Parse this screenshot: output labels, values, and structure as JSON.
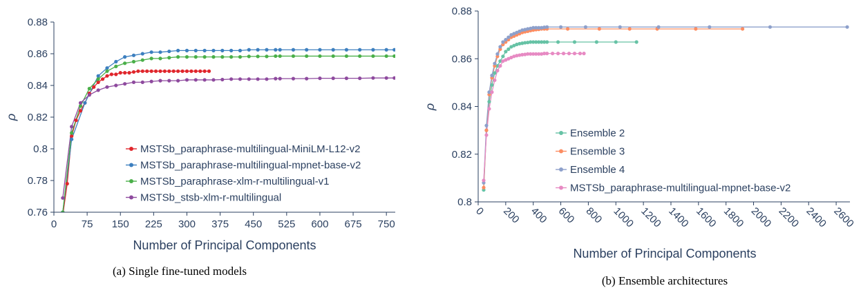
{
  "chart_data": [
    {
      "type": "line",
      "caption": "(a) Single fine-tuned models",
      "xlabel": "Number of Principal Components",
      "ylabel": "ρ",
      "xlim": [
        0,
        770
      ],
      "ylim": [
        0.76,
        0.88
      ],
      "xticks": [
        0,
        75,
        150,
        225,
        300,
        375,
        450,
        525,
        600,
        675,
        750
      ],
      "yticks": [
        0.76,
        0.78,
        0.8,
        0.82,
        0.84,
        0.86,
        0.88
      ],
      "ytick_labels": [
        "0.76",
        "0.78",
        "0.8",
        "0.82",
        "0.84",
        "0.86",
        "0.88"
      ],
      "grid": false,
      "legend_position": "bottom-right",
      "series": [
        {
          "name": "MSTSb_paraphrase-multilingual-MiniLM-L12-v2",
          "color": "#e0262c",
          "x": [
            20,
            30,
            40,
            50,
            60,
            70,
            80,
            90,
            100,
            110,
            120,
            130,
            140,
            150,
            160,
            170,
            180,
            190,
            200,
            210,
            220,
            230,
            240,
            250,
            260,
            270,
            280,
            290,
            300,
            310,
            320,
            330,
            340,
            350
          ],
          "y": [
            0.758,
            0.778,
            0.808,
            0.818,
            0.824,
            0.829,
            0.835,
            0.839,
            0.842,
            0.844,
            0.846,
            0.847,
            0.847,
            0.848,
            0.848,
            0.848,
            0.8485,
            0.849,
            0.849,
            0.849,
            0.849,
            0.849,
            0.849,
            0.849,
            0.849,
            0.849,
            0.849,
            0.849,
            0.849,
            0.849,
            0.849,
            0.849,
            0.849,
            0.849
          ]
        },
        {
          "name": "MSTSb_paraphrase-multilingual-mpnet-base-v2",
          "color": "#3c7fbf",
          "x": [
            20,
            40,
            70,
            100,
            120,
            140,
            160,
            180,
            200,
            220,
            240,
            260,
            280,
            300,
            320,
            340,
            360,
            380,
            400,
            420,
            440,
            460,
            480,
            500,
            510,
            540,
            570,
            600,
            630,
            660,
            690,
            720,
            750,
            768
          ],
          "y": [
            0.76,
            0.806,
            0.829,
            0.846,
            0.851,
            0.855,
            0.858,
            0.859,
            0.86,
            0.861,
            0.861,
            0.8615,
            0.862,
            0.862,
            0.862,
            0.862,
            0.862,
            0.862,
            0.862,
            0.862,
            0.8625,
            0.8625,
            0.8625,
            0.8625,
            0.8625,
            0.8625,
            0.8625,
            0.8625,
            0.8625,
            0.8625,
            0.8625,
            0.8625,
            0.8625,
            0.8625
          ]
        },
        {
          "name": "MSTSb_paraphrase-xlm-r-multilingual-v1",
          "color": "#4aaf49",
          "x": [
            20,
            40,
            60,
            80,
            100,
            120,
            140,
            160,
            180,
            200,
            220,
            240,
            260,
            280,
            300,
            320,
            340,
            360,
            380,
            400,
            420,
            440,
            460,
            480,
            500,
            510,
            540,
            570,
            600,
            630,
            660,
            690,
            720,
            750,
            768
          ],
          "y": [
            0.76,
            0.81,
            0.827,
            0.838,
            0.844,
            0.849,
            0.852,
            0.854,
            0.855,
            0.856,
            0.857,
            0.857,
            0.8575,
            0.858,
            0.858,
            0.858,
            0.858,
            0.858,
            0.858,
            0.858,
            0.858,
            0.8583,
            0.8583,
            0.8583,
            0.8585,
            0.8585,
            0.8585,
            0.8585,
            0.8585,
            0.8585,
            0.8585,
            0.8585,
            0.8585,
            0.8585,
            0.8585
          ]
        },
        {
          "name": "MSTSb_stsb-xlm-r-multilingual",
          "color": "#8e4a9e",
          "x": [
            20,
            40,
            60,
            80,
            100,
            120,
            140,
            160,
            180,
            200,
            220,
            240,
            260,
            280,
            300,
            320,
            340,
            360,
            380,
            400,
            420,
            440,
            460,
            480,
            500,
            510,
            540,
            570,
            600,
            630,
            660,
            690,
            720,
            750,
            768
          ],
          "y": [
            0.769,
            0.814,
            0.829,
            0.834,
            0.837,
            0.839,
            0.84,
            0.841,
            0.842,
            0.842,
            0.8425,
            0.843,
            0.843,
            0.843,
            0.8435,
            0.8435,
            0.8435,
            0.8435,
            0.8437,
            0.844,
            0.844,
            0.844,
            0.844,
            0.844,
            0.8443,
            0.8443,
            0.8443,
            0.8443,
            0.8445,
            0.8445,
            0.8445,
            0.8445,
            0.8447,
            0.8447,
            0.8447
          ]
        }
      ]
    },
    {
      "type": "line",
      "caption": "(b) Ensemble architectures",
      "xlabel": "Number of Principal Components",
      "ylabel": "ρ",
      "xlim": [
        0,
        2700
      ],
      "ylim": [
        0.8,
        0.88
      ],
      "xticks": [
        0,
        200,
        400,
        600,
        800,
        1000,
        1200,
        1400,
        1600,
        1800,
        2000,
        2200,
        2400,
        2600
      ],
      "yticks": [
        0.8,
        0.82,
        0.84,
        0.86,
        0.88
      ],
      "ytick_labels": [
        "0.8",
        "0.82",
        "0.84",
        "0.86",
        "0.88"
      ],
      "grid": false,
      "legend_position": "center",
      "series": [
        {
          "name": "Ensemble 2",
          "color": "#66c2a5",
          "x": [
            40,
            60,
            80,
            100,
            120,
            140,
            160,
            180,
            200,
            220,
            240,
            260,
            280,
            300,
            320,
            340,
            360,
            380,
            400,
            420,
            440,
            460,
            480,
            500,
            580,
            700,
            860,
            1000,
            1150
          ],
          "y": [
            0.805,
            0.83,
            0.842,
            0.849,
            0.854,
            0.857,
            0.859,
            0.861,
            0.863,
            0.864,
            0.865,
            0.8655,
            0.866,
            0.8663,
            0.8665,
            0.8667,
            0.8668,
            0.867,
            0.867,
            0.867,
            0.867,
            0.867,
            0.867,
            0.867,
            0.867,
            0.867,
            0.867,
            0.867,
            0.867
          ]
        },
        {
          "name": "Ensemble 3",
          "color": "#fc8d62",
          "x": [
            40,
            60,
            80,
            100,
            120,
            140,
            160,
            180,
            200,
            220,
            240,
            260,
            280,
            300,
            320,
            340,
            360,
            380,
            400,
            420,
            440,
            460,
            480,
            500,
            650,
            880,
            1100,
            1300,
            1580,
            1920
          ],
          "y": [
            0.806,
            0.83,
            0.845,
            0.852,
            0.857,
            0.861,
            0.864,
            0.866,
            0.867,
            0.868,
            0.869,
            0.8695,
            0.87,
            0.8705,
            0.871,
            0.8713,
            0.8715,
            0.8718,
            0.872,
            0.8722,
            0.8723,
            0.8725,
            0.8725,
            0.8725,
            0.8725,
            0.8725,
            0.8725,
            0.8725,
            0.8725,
            0.8725
          ]
        },
        {
          "name": "Ensemble 4",
          "color": "#8da0cb",
          "x": [
            40,
            60,
            80,
            100,
            120,
            140,
            160,
            180,
            200,
            220,
            240,
            260,
            280,
            300,
            320,
            340,
            360,
            380,
            400,
            420,
            440,
            460,
            480,
            500,
            600,
            780,
            1030,
            1310,
            1680,
            2120,
            2680
          ],
          "y": [
            0.808,
            0.832,
            0.846,
            0.853,
            0.858,
            0.862,
            0.865,
            0.867,
            0.868,
            0.869,
            0.87,
            0.8705,
            0.871,
            0.8715,
            0.872,
            0.8722,
            0.8725,
            0.8727,
            0.873,
            0.873,
            0.873,
            0.873,
            0.8732,
            0.8733,
            0.8733,
            0.8733,
            0.8733,
            0.8733,
            0.8733,
            0.8733,
            0.8733
          ]
        },
        {
          "name": "MSTSb_paraphrase-multilingual-mpnet-base-v2",
          "color": "#e78ac3",
          "x": [
            40,
            60,
            80,
            100,
            120,
            140,
            160,
            180,
            200,
            220,
            240,
            260,
            280,
            300,
            320,
            340,
            360,
            380,
            400,
            420,
            440,
            460,
            480,
            500,
            540,
            580,
            620,
            660,
            700,
            740,
            768
          ],
          "y": [
            0.809,
            0.828,
            0.839,
            0.846,
            0.851,
            0.855,
            0.857,
            0.859,
            0.8595,
            0.86,
            0.8605,
            0.861,
            0.8613,
            0.8615,
            0.8617,
            0.8618,
            0.862,
            0.862,
            0.862,
            0.862,
            0.862,
            0.862,
            0.8622,
            0.8622,
            0.8622,
            0.8622,
            0.8622,
            0.8622,
            0.8622,
            0.8622,
            0.8622
          ]
        }
      ]
    }
  ]
}
